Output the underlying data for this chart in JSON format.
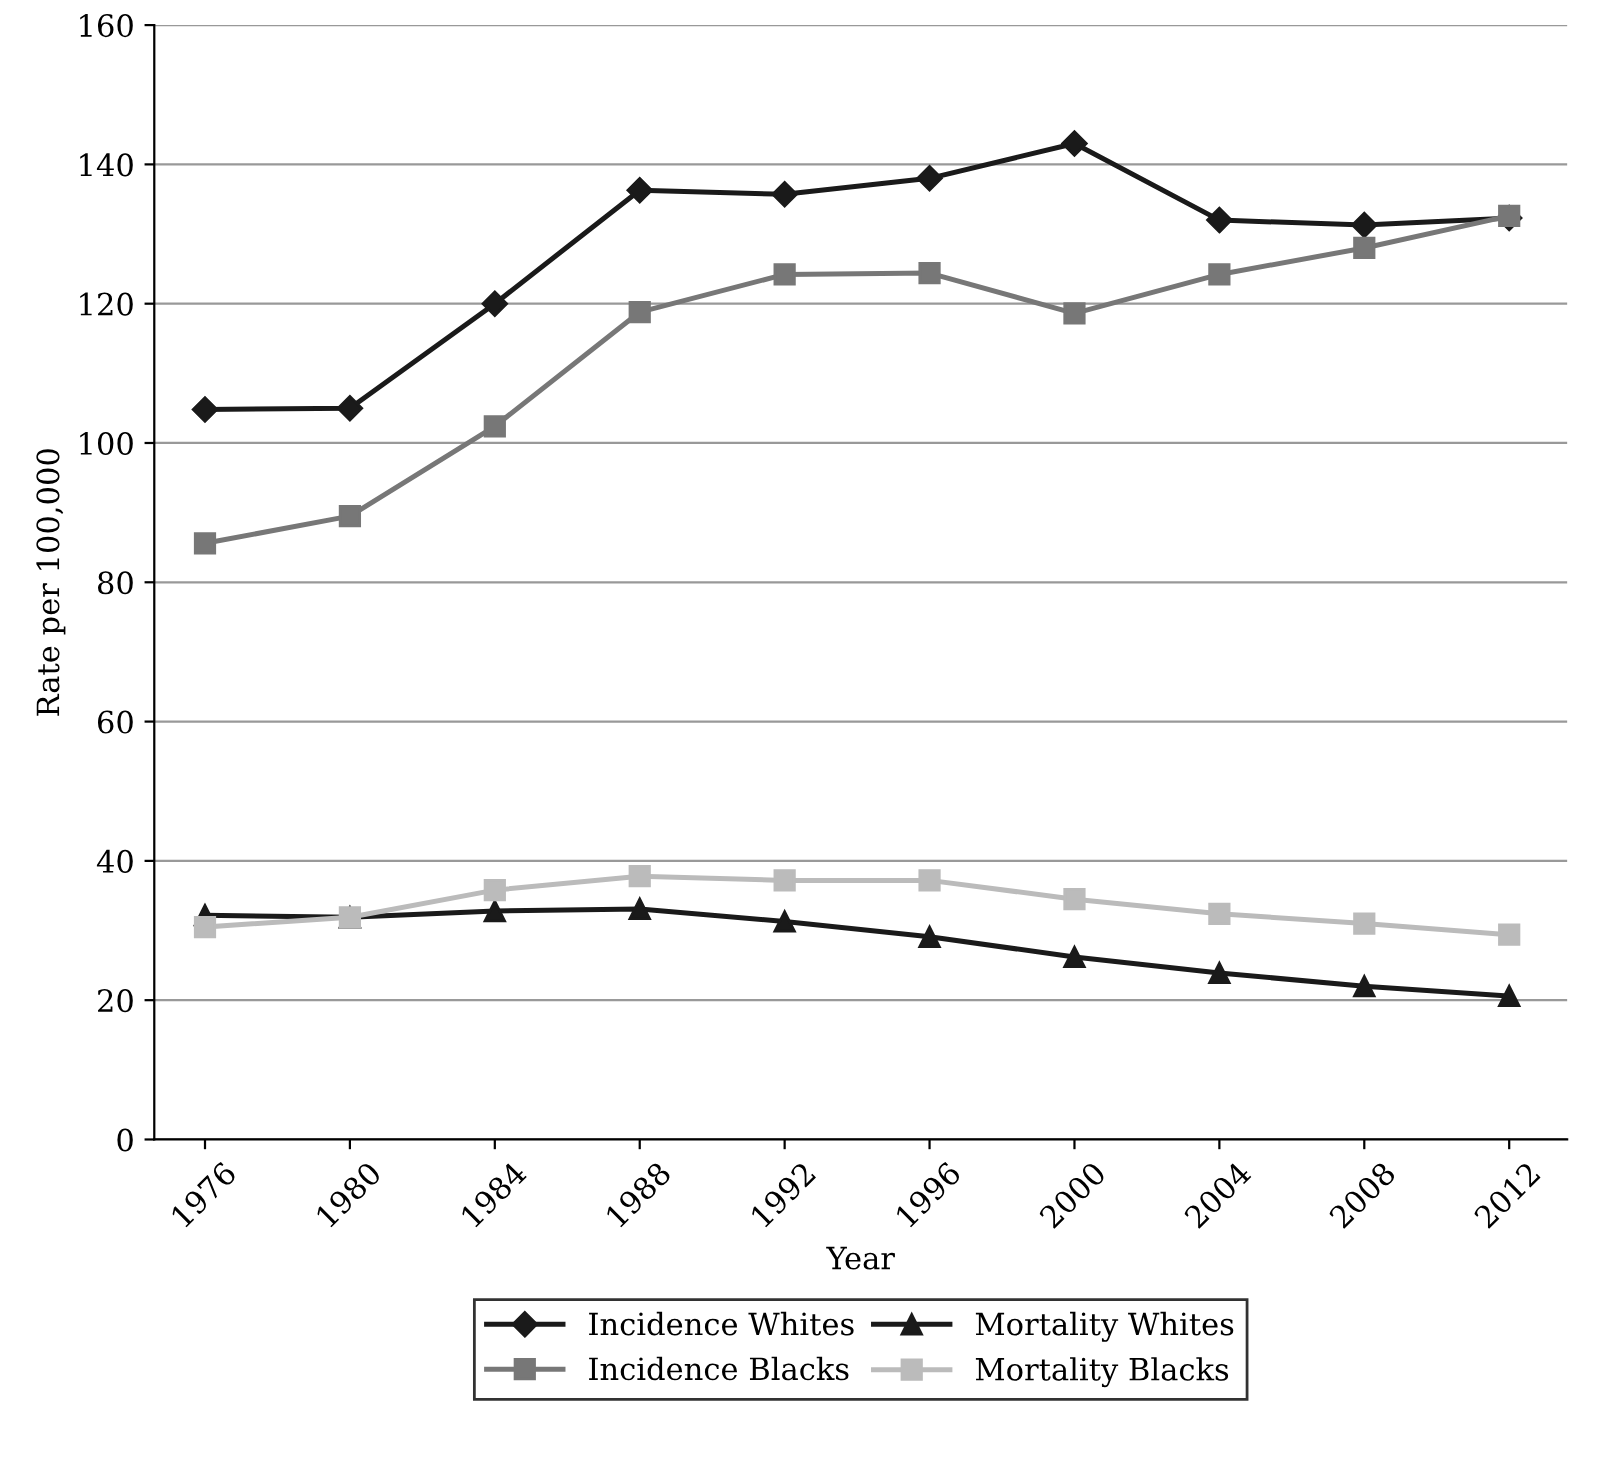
{
  "chart_data": {
    "type": "line",
    "xlabel": "Year",
    "ylabel": "Rate per 100,000",
    "categories": [
      "1976",
      "1980",
      "1984",
      "1988",
      "1992",
      "1996",
      "2000",
      "2004",
      "2008",
      "2012"
    ],
    "series": [
      {
        "name": "Incidence Whites",
        "color": "#1a1a1a",
        "marker": "diamond",
        "values": [
          104.8,
          105,
          120,
          136.3,
          135.7,
          138,
          143,
          132,
          131.3,
          132.3
        ]
      },
      {
        "name": "Incidence Blacks",
        "color": "#777777",
        "marker": "square",
        "values": [
          85.6,
          89.5,
          102.4,
          118.8,
          124.2,
          124.4,
          118.6,
          124.2,
          128,
          132.6
        ]
      },
      {
        "name": "Mortality Whites",
        "color": "#1a1a1a",
        "marker": "triangle",
        "values": [
          32.2,
          31.9,
          32.8,
          33.1,
          31.3,
          29.1,
          26.2,
          23.9,
          22,
          20.6
        ]
      },
      {
        "name": "Mortality Blacks",
        "color": "#bbbbbb",
        "marker": "square",
        "values": [
          30.5,
          31.9,
          35.8,
          37.8,
          37.2,
          37.2,
          34.5,
          32.4,
          31,
          29.4
        ]
      }
    ],
    "ylim": [
      0,
      160
    ],
    "yticks": [
      0,
      20,
      40,
      60,
      80,
      100,
      120,
      140,
      160
    ],
    "grid": "y",
    "legend": "bottom"
  }
}
